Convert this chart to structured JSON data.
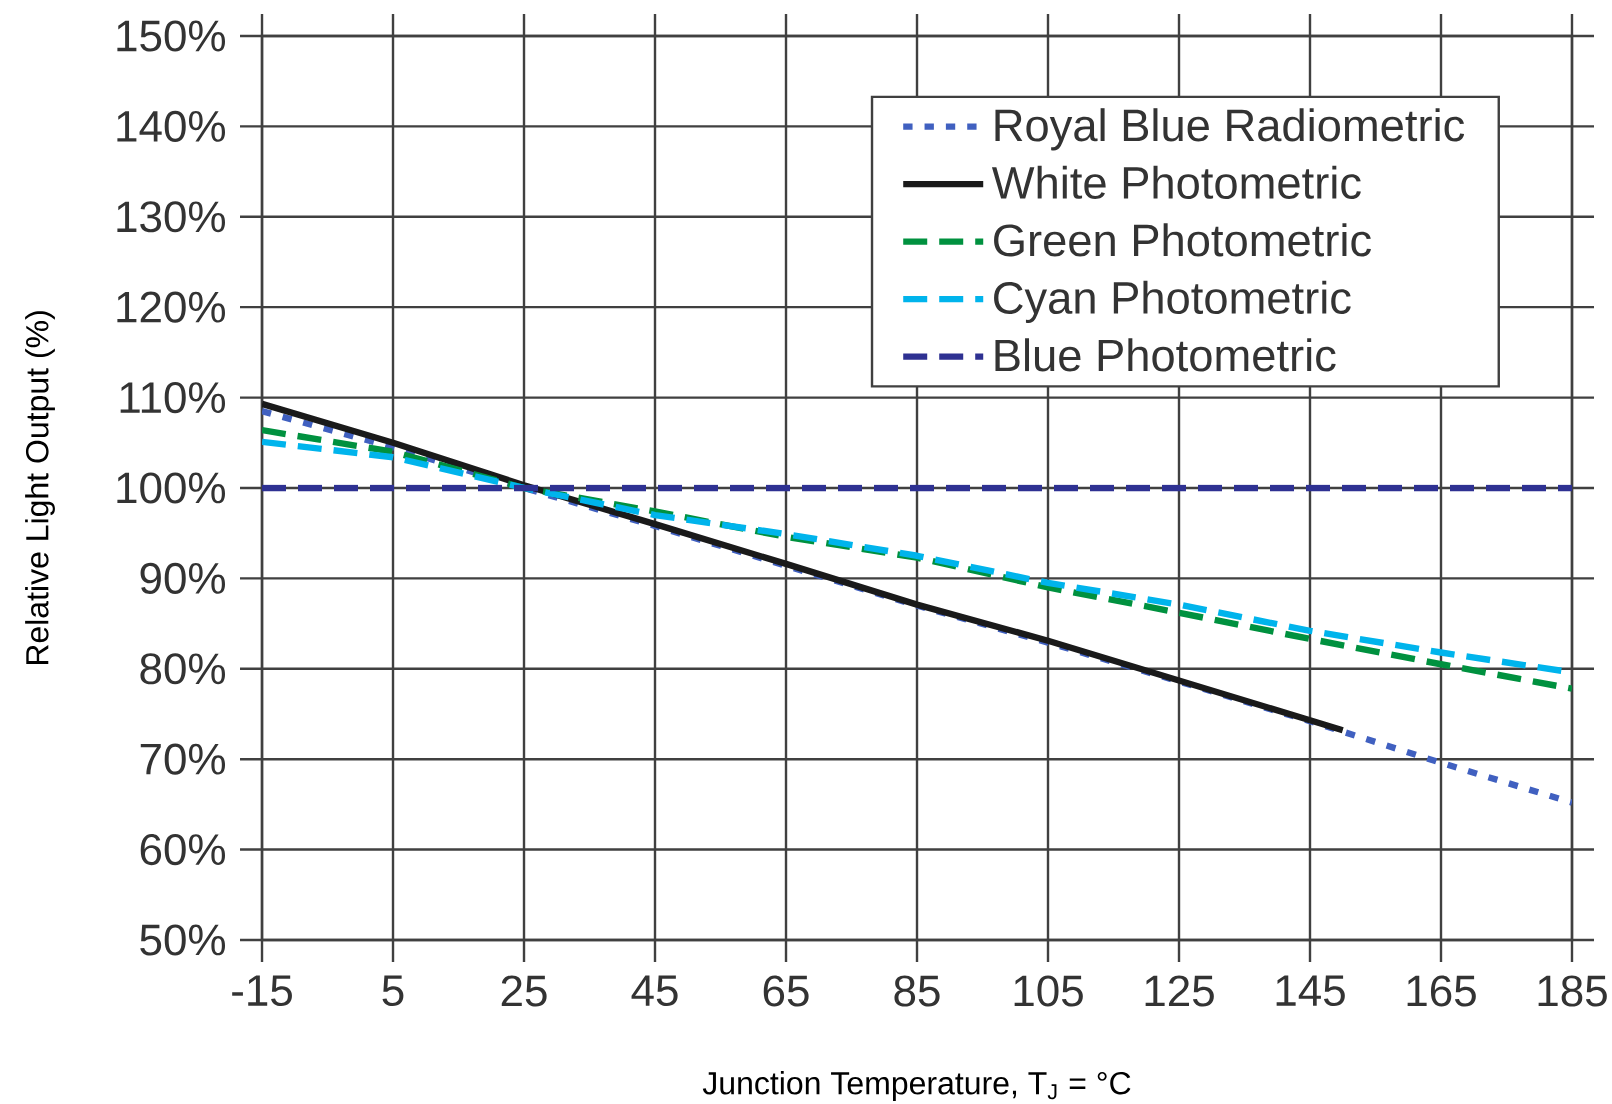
{
  "chart_data": {
    "type": "line",
    "xlabel": "Junction Temperature, T$_{J}$ = °C",
    "ylabel": "Relative Light Output (%)",
    "series": [
      {
        "name": "Royal Blue Radiometric",
        "color": "#4060c0",
        "line_style": "dotted",
        "x": [
          -15,
          5,
          25,
          45,
          65,
          85,
          105,
          125,
          145,
          165,
          185
        ],
        "values": [
          108.5,
          104.5,
          100,
          95.8,
          91.4,
          87,
          82.9,
          78.6,
          74.2,
          69.6,
          65.2
        ]
      },
      {
        "name": "White Photometric",
        "color": "#1a1a1a",
        "line_style": "solid",
        "x": [
          -15,
          5,
          25,
          45,
          65,
          85,
          105,
          125,
          145,
          150
        ],
        "values": [
          109.3,
          105,
          100.3,
          96,
          91.6,
          87.1,
          83.1,
          78.7,
          74.3,
          73.2
        ]
      },
      {
        "name": "Green Photometric",
        "color": "#00913f",
        "line_style": "dashed",
        "x": [
          -15,
          5,
          25,
          45,
          65,
          85,
          105,
          125,
          145,
          165,
          185
        ],
        "values": [
          106.4,
          104,
          100,
          97.4,
          94.6,
          92.3,
          89,
          86.2,
          83.3,
          80.5,
          77.8
        ]
      },
      {
        "name": "Cyan Photometric",
        "color": "#00b4ec",
        "line_style": "dashed",
        "x": [
          -15,
          5,
          25,
          45,
          65,
          85,
          105,
          125,
          145,
          165,
          185
        ],
        "values": [
          105.1,
          103.4,
          100,
          97,
          94.9,
          92.5,
          89.5,
          87.1,
          84.2,
          81.8,
          79.6
        ]
      },
      {
        "name": "Blue Photometric",
        "color": "#2e3192",
        "line_style": "dashed",
        "x": [
          -15,
          185
        ],
        "values": [
          100,
          100
        ]
      }
    ],
    "xlim": [
      -15,
      185
    ],
    "ylim": [
      50,
      150
    ],
    "xticks": [
      -15,
      5,
      25,
      45,
      65,
      85,
      105,
      125,
      145,
      165,
      185
    ],
    "yticks": [
      {
        "value": 50,
        "label": "50%"
      },
      {
        "value": 60,
        "label": "60%"
      },
      {
        "value": 70,
        "label": "70%"
      },
      {
        "value": 80,
        "label": "80%"
      },
      {
        "value": 90,
        "label": "90%"
      },
      {
        "value": 100,
        "label": "100%"
      },
      {
        "value": 110,
        "label": "110%"
      },
      {
        "value": 120,
        "label": "120%"
      },
      {
        "value": 130,
        "label": "130%"
      },
      {
        "value": 140,
        "label": "140%"
      },
      {
        "value": 150,
        "label": "150%"
      }
    ],
    "grid": true,
    "legend": "top right"
  }
}
